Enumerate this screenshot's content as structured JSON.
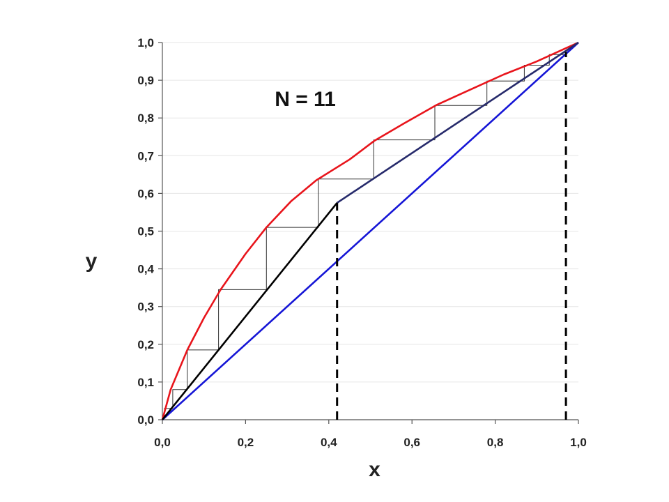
{
  "chart_data": {
    "type": "line",
    "title": "",
    "xlabel": "x",
    "ylabel": "y",
    "xlim": [
      0,
      1
    ],
    "ylim": [
      0,
      1
    ],
    "grid": "horizontal",
    "legend": "none",
    "x_ticks": [
      "0,0",
      "0,2",
      "0,4",
      "0,6",
      "0,8",
      "1,0"
    ],
    "x_tick_values": [
      0,
      0.2,
      0.4,
      0.6,
      0.8,
      1.0
    ],
    "y_ticks": [
      "0,0",
      "0,1",
      "0,2",
      "0,3",
      "0,4",
      "0,5",
      "0,6",
      "0,7",
      "0,8",
      "0,9",
      "1,0"
    ],
    "y_tick_values": [
      0,
      0.1,
      0.2,
      0.3,
      0.4,
      0.5,
      0.6,
      0.7,
      0.8,
      0.9,
      1.0
    ],
    "annotation": "N = 11",
    "annotation_pos": [
      0.27,
      0.85
    ],
    "series": [
      {
        "role": "equilibrium-curve",
        "color": "#e8141b",
        "x": [
          0,
          0.02,
          0.06,
          0.1,
          0.14,
          0.2,
          0.25,
          0.31,
          0.37,
          0.45,
          0.51,
          0.58,
          0.66,
          0.74,
          0.82,
          0.9,
          0.97,
          1.0
        ],
        "y": [
          0,
          0.08,
          0.185,
          0.27,
          0.345,
          0.44,
          0.51,
          0.58,
          0.635,
          0.69,
          0.74,
          0.785,
          0.835,
          0.875,
          0.915,
          0.95,
          0.985,
          1.0
        ]
      },
      {
        "role": "diagonal",
        "color": "#1515d6",
        "x": [
          0,
          1
        ],
        "y": [
          0,
          1
        ]
      },
      {
        "role": "stripping-operating-line",
        "color": "#000000",
        "x": [
          0,
          0.42
        ],
        "y": [
          0,
          0.575
        ]
      },
      {
        "role": "rectifying-operating-line",
        "color": "#262a6b",
        "x": [
          0.42,
          1.0
        ],
        "y": [
          0.575,
          1.0
        ]
      },
      {
        "role": "feed-composition-marker",
        "color": "#000000",
        "dashed": true,
        "x": [
          0.42,
          0.42
        ],
        "y": [
          0,
          0.575
        ]
      },
      {
        "role": "distillate-composition-marker",
        "color": "#000000",
        "dashed": true,
        "x": [
          0.97,
          0.97
        ],
        "y": [
          0,
          0.975
        ]
      }
    ],
    "stages": {
      "color": "#333333",
      "points": [
        [
          0.005,
          0.005
        ],
        [
          0.005,
          0.03
        ],
        [
          0.025,
          0.03
        ],
        [
          0.025,
          0.08
        ],
        [
          0.06,
          0.08
        ],
        [
          0.06,
          0.185
        ],
        [
          0.135,
          0.185
        ],
        [
          0.135,
          0.345
        ],
        [
          0.25,
          0.345
        ],
        [
          0.25,
          0.51
        ],
        [
          0.375,
          0.51
        ],
        [
          0.375,
          0.638
        ],
        [
          0.508,
          0.638
        ],
        [
          0.508,
          0.742
        ],
        [
          0.655,
          0.742
        ],
        [
          0.655,
          0.833
        ],
        [
          0.78,
          0.833
        ],
        [
          0.78,
          0.898
        ],
        [
          0.87,
          0.898
        ],
        [
          0.87,
          0.94
        ],
        [
          0.93,
          0.94
        ],
        [
          0.93,
          0.968
        ],
        [
          0.97,
          0.968
        ]
      ]
    }
  }
}
